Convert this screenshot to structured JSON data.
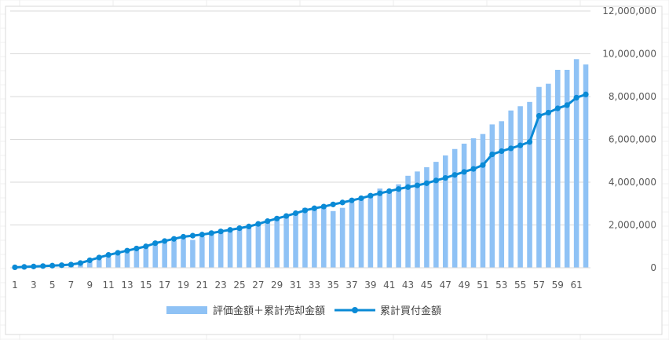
{
  "chart_data": {
    "type": "bar+line",
    "title": "",
    "xlabel": "",
    "ylabel": "",
    "ylim": [
      0,
      12000000
    ],
    "yticks": [
      0,
      2000000,
      4000000,
      6000000,
      8000000,
      10000000,
      12000000
    ],
    "ytick_labels": [
      "0",
      "2,000,000",
      "4,000,000",
      "6,000,000",
      "8,000,000",
      "10,000,000",
      "12,000,000"
    ],
    "y_axis_side": "right",
    "grid": true,
    "legend_position": "bottom",
    "x": [
      1,
      2,
      3,
      4,
      5,
      6,
      7,
      8,
      9,
      10,
      11,
      12,
      13,
      14,
      15,
      16,
      17,
      18,
      19,
      20,
      21,
      22,
      23,
      24,
      25,
      26,
      27,
      28,
      29,
      30,
      31,
      32,
      33,
      34,
      35,
      36,
      37,
      38,
      39,
      40,
      41,
      42,
      43,
      44,
      45,
      46,
      47,
      48,
      49,
      50,
      51,
      52,
      53,
      54,
      55,
      56,
      57,
      58,
      59,
      60,
      61,
      62
    ],
    "xtick_labels": [
      "1",
      "3",
      "5",
      "7",
      "9",
      "11",
      "13",
      "15",
      "17",
      "19",
      "21",
      "23",
      "25",
      "27",
      "29",
      "31",
      "33",
      "35",
      "37",
      "39",
      "41",
      "43",
      "45",
      "47",
      "49",
      "51",
      "53",
      "55",
      "57",
      "59",
      "61"
    ],
    "series": [
      {
        "name": "評価金額＋累計売却金額",
        "type": "bar",
        "color": "#8fc2f5",
        "values": [
          20000,
          40000,
          60000,
          80000,
          100000,
          120000,
          140000,
          180000,
          260000,
          380000,
          500000,
          600000,
          700000,
          800000,
          900000,
          1050000,
          1150000,
          1250000,
          1350000,
          1300000,
          1450000,
          1550000,
          1650000,
          1750000,
          1800000,
          1850000,
          2000000,
          2100000,
          2250000,
          2350000,
          2550000,
          2800000,
          2850000,
          2900000,
          2650000,
          2800000,
          3050000,
          3250000,
          3450000,
          3700000,
          3600000,
          3900000,
          4300000,
          4500000,
          4700000,
          4950000,
          5250000,
          5550000,
          5800000,
          6050000,
          6250000,
          6700000,
          6850000,
          7350000,
          7550000,
          7750000,
          8450000,
          8600000,
          9250000,
          9250000,
          9750000,
          9500000
        ]
      },
      {
        "name": "累計買付金額",
        "type": "line",
        "color": "#0a8ad6",
        "values": [
          20000,
          40000,
          60000,
          80000,
          100000,
          120000,
          150000,
          220000,
          350000,
          480000,
          600000,
          700000,
          800000,
          900000,
          1000000,
          1150000,
          1250000,
          1350000,
          1450000,
          1500000,
          1550000,
          1620000,
          1700000,
          1770000,
          1850000,
          1930000,
          2050000,
          2180000,
          2300000,
          2420000,
          2550000,
          2680000,
          2780000,
          2860000,
          2960000,
          3050000,
          3150000,
          3250000,
          3370000,
          3480000,
          3580000,
          3680000,
          3770000,
          3850000,
          3950000,
          4080000,
          4200000,
          4340000,
          4480000,
          4620000,
          4800000,
          5300000,
          5450000,
          5580000,
          5720000,
          5880000,
          7100000,
          7250000,
          7450000,
          7600000,
          7950000,
          8100000
        ]
      }
    ]
  }
}
